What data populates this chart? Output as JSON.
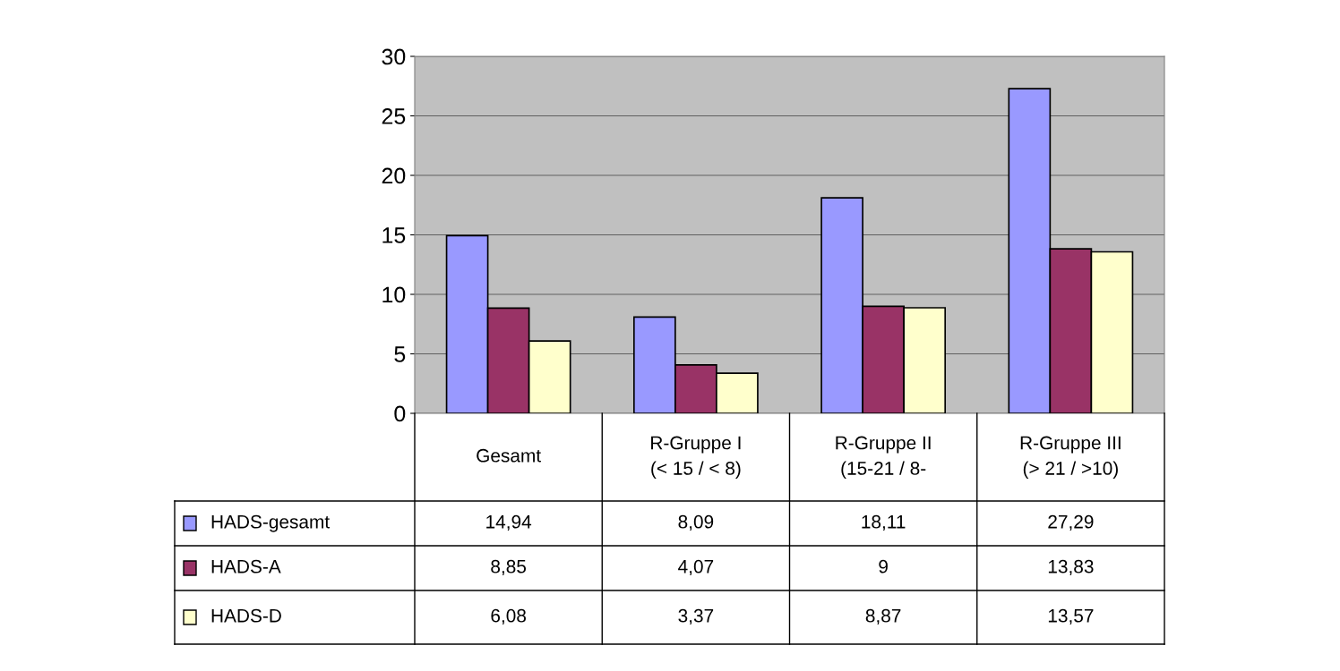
{
  "chart_data": {
    "type": "bar",
    "categories": [
      "Gesamt",
      "R-Gruppe I\n(< 15 / < 8)",
      "R-Gruppe II\n(15-21 / 8-",
      "R-Gruppe III\n(> 21 / >10)"
    ],
    "series": [
      {
        "name": "HADS-gesamt",
        "color": "#9999ff",
        "values": [
          14.94,
          8.09,
          18.11,
          27.29
        ],
        "value_labels": [
          "14,94",
          "8,09",
          "18,11",
          "27,29"
        ]
      },
      {
        "name": "HADS-A",
        "color": "#993366",
        "values": [
          8.85,
          4.07,
          9,
          13.83
        ],
        "value_labels": [
          "8,85",
          "4,07",
          "9",
          "13,83"
        ]
      },
      {
        "name": "HADS-D",
        "color": "#ffffcc",
        "values": [
          6.08,
          3.37,
          8.87,
          13.57
        ],
        "value_labels": [
          "6,08",
          "3,37",
          "8,87",
          "13,57"
        ]
      }
    ],
    "ylim": [
      0,
      30
    ],
    "yticks": [
      0,
      5,
      10,
      15,
      20,
      25,
      30
    ],
    "grid": "y",
    "legend": "bottom"
  }
}
